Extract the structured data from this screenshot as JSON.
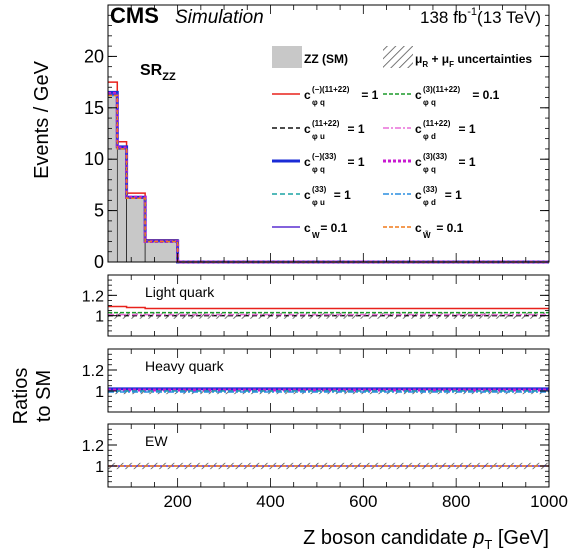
{
  "header": {
    "experiment": "CMS",
    "subtitle": "Simulation",
    "lumi_value": "138 fb",
    "lumi_exp": "-1",
    "energy": "(13 TeV)"
  },
  "region": {
    "main": "SR",
    "sub": "ZZ"
  },
  "labels": {
    "ylabel_main": "Events / GeV",
    "ylabel_ratio_line1": "Ratios",
    "ylabel_ratio_line2": "to SM",
    "xlabel_prefix": "Z boson candidate ",
    "xlabel_var": "p",
    "xlabel_var_sub": "T",
    "xlabel_unit": " [GeV]"
  },
  "legend": [
    {
      "id": "zz",
      "kind": "fill",
      "color": "#c8c8c8",
      "base": "ZZ (SM)",
      "sup": "",
      "sub": "",
      "tail": ""
    },
    {
      "id": "unc",
      "kind": "hatch",
      "color": "#555555",
      "base": "μ",
      "sup": "",
      "sub": "R",
      "tail": " + μ",
      "sub2": "F",
      "tail2": " uncertainties"
    },
    {
      "id": "phiq_m_1122",
      "kind": "line",
      "color": "#e8221c",
      "dash": "",
      "width": 1.5,
      "base": "c",
      "sup": "(−)(11+22)",
      "sub": "φ q",
      "tail": " = 1"
    },
    {
      "id": "phiq_3_1122",
      "kind": "line",
      "color": "#1b9a2a",
      "dash": "4,2",
      "width": 1.5,
      "base": "c",
      "sup": "(3)(11+22)",
      "sub": "φ q",
      "tail": " = 0.1"
    },
    {
      "id": "phiu_1122",
      "kind": "line",
      "color": "#111111",
      "dash": "5,3",
      "width": 1.5,
      "base": "c",
      "sup": "(11+22)",
      "sub": "φ u",
      "tail": " = 1"
    },
    {
      "id": "phid_1122",
      "kind": "line",
      "color": "#e86fd8",
      "dash": "6,2,2,2",
      "width": 1.5,
      "base": "c",
      "sup": "(11+22)",
      "sub": "φ d",
      "tail": " = 1"
    },
    {
      "id": "phiq_m_33",
      "kind": "line",
      "color": "#1a2bd6",
      "dash": "",
      "width": 3,
      "base": "c",
      "sup": "(−)(33)",
      "sub": "φ q",
      "tail": " = 1"
    },
    {
      "id": "phiq_3_33",
      "kind": "line",
      "color": "#c81ad0",
      "dash": "3,2",
      "width": 3,
      "base": "c",
      "sup": "(3)(33)",
      "sub": "φ q",
      "tail": " = 1"
    },
    {
      "id": "phiu_33",
      "kind": "line",
      "color": "#1aa3a3",
      "dash": "5,3",
      "width": 1.5,
      "base": "c",
      "sup": "(33)",
      "sub": "φ u",
      "tail": " = 1"
    },
    {
      "id": "phid_33",
      "kind": "line",
      "color": "#2a8ee0",
      "dash": "6,2,2,2",
      "width": 1.5,
      "base": "c",
      "sup": "(33)",
      "sub": "φ d",
      "tail": " = 1"
    },
    {
      "id": "cw",
      "kind": "line",
      "color": "#5a2fd0",
      "dash": "",
      "width": 1.5,
      "base": "c",
      "sup": "",
      "sub": "W",
      "tail": " = 0.1"
    },
    {
      "id": "cwt",
      "kind": "line",
      "color": "#f07a1a",
      "dash": "4,2",
      "width": 1.5,
      "base": "c",
      "sup": "",
      "sub": "W̃",
      "tail": " = 0.1"
    }
  ],
  "chart_data": [
    {
      "panel": "main",
      "type": "histogram",
      "xlim": [
        50,
        1000
      ],
      "ylim": [
        0,
        25
      ],
      "yticks": [
        0,
        5,
        10,
        15,
        20
      ],
      "bins": [
        50,
        70,
        90,
        130,
        200,
        1000
      ],
      "series": [
        {
          "ref": "zz",
          "values": [
            16.2,
            11.0,
            6.2,
            2.0,
            0.0
          ]
        },
        {
          "ref": "phiq_m_1122",
          "values": [
            17.5,
            11.7,
            6.7,
            2.15,
            0.0
          ]
        },
        {
          "ref": "phiq_3_1122",
          "values": [
            16.5,
            11.2,
            6.3,
            2.05,
            0.0
          ]
        },
        {
          "ref": "phiu_1122",
          "values": [
            16.3,
            11.1,
            6.2,
            2.0,
            0.0
          ]
        },
        {
          "ref": "phid_1122",
          "values": [
            16.4,
            11.1,
            6.3,
            2.0,
            0.0
          ]
        },
        {
          "ref": "phiq_m_33",
          "values": [
            16.5,
            11.2,
            6.3,
            2.05,
            0.0
          ]
        },
        {
          "ref": "phiq_3_33",
          "values": [
            16.4,
            11.1,
            6.3,
            2.0,
            0.0
          ]
        },
        {
          "ref": "phiu_33",
          "values": [
            16.3,
            11.0,
            6.2,
            2.0,
            0.0
          ]
        },
        {
          "ref": "phid_33",
          "values": [
            16.2,
            11.0,
            6.2,
            2.0,
            0.0
          ]
        },
        {
          "ref": "cw",
          "values": [
            16.3,
            11.0,
            6.2,
            2.0,
            0.0
          ]
        },
        {
          "ref": "cwt",
          "values": [
            16.2,
            11.0,
            6.2,
            2.0,
            0.0
          ]
        }
      ]
    },
    {
      "panel": "ratio",
      "type": "histogram",
      "label": "Light quark",
      "xlim": [
        50,
        1000
      ],
      "ylim": [
        0.8,
        1.4
      ],
      "yticks": [
        1,
        1.2
      ],
      "bins": [
        50,
        70,
        90,
        130,
        200,
        1000
      ],
      "uncertainty_band": [
        0.97,
        1.03
      ],
      "series": [
        {
          "ref": "phiq_m_1122",
          "values": [
            1.09,
            1.09,
            1.08,
            1.07,
            1.07
          ]
        },
        {
          "ref": "phiq_3_1122",
          "values": [
            1.03,
            1.03,
            1.03,
            1.03,
            1.03
          ]
        },
        {
          "ref": "phiu_1122",
          "values": [
            1.0,
            1.0,
            1.0,
            1.0,
            1.0
          ]
        },
        {
          "ref": "phid_1122",
          "values": [
            1.01,
            1.01,
            1.01,
            1.01,
            1.01
          ]
        }
      ]
    },
    {
      "panel": "ratio",
      "type": "histogram",
      "label": "Heavy quark",
      "xlim": [
        50,
        1000
      ],
      "ylim": [
        0.8,
        1.4
      ],
      "yticks": [
        1,
        1.2
      ],
      "bins": [
        50,
        70,
        90,
        130,
        200,
        1000
      ],
      "uncertainty_band": [
        0.97,
        1.03
      ],
      "series": [
        {
          "ref": "phiq_m_33",
          "values": [
            1.02,
            1.02,
            1.02,
            1.02,
            1.02
          ]
        },
        {
          "ref": "phiq_3_33",
          "values": [
            1.01,
            1.01,
            1.01,
            1.01,
            1.01
          ]
        },
        {
          "ref": "phiu_33",
          "values": [
            1.0,
            1.0,
            1.0,
            1.0,
            1.0
          ]
        },
        {
          "ref": "phid_33",
          "values": [
            0.99,
            0.99,
            0.99,
            0.99,
            0.99
          ]
        }
      ]
    },
    {
      "panel": "ratio",
      "type": "histogram",
      "label": "EW",
      "xlim": [
        50,
        1000
      ],
      "ylim": [
        0.8,
        1.4
      ],
      "yticks": [
        1,
        1.2
      ],
      "bins": [
        50,
        70,
        90,
        130,
        200,
        1000
      ],
      "uncertainty_band": [
        0.97,
        1.03
      ],
      "xticks": [
        200,
        400,
        600,
        800,
        1000
      ],
      "series": [
        {
          "ref": "cw",
          "values": [
            1.0,
            1.0,
            1.0,
            1.0,
            1.0
          ]
        },
        {
          "ref": "cwt",
          "values": [
            1.0,
            1.0,
            1.0,
            1.0,
            1.0
          ]
        }
      ]
    }
  ]
}
